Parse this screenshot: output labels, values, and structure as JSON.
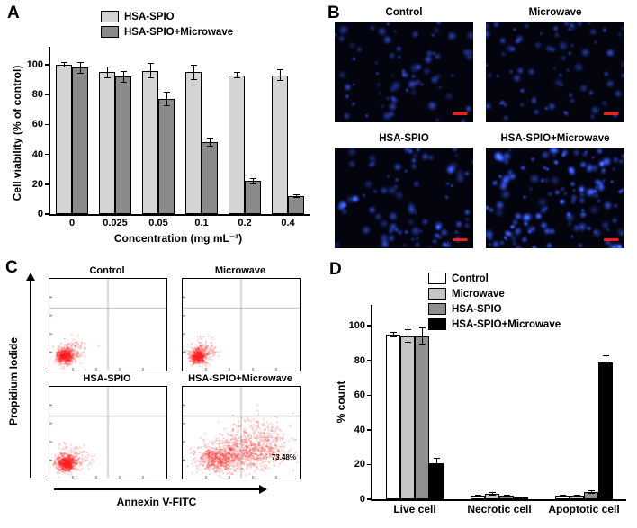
{
  "panels": {
    "a": {
      "label": "A"
    },
    "b": {
      "label": "B",
      "scale_bar_color": "#ff1a1a",
      "images": [
        {
          "title": "Control",
          "cell_count": 70,
          "brightness": 0.8
        },
        {
          "title": "Microwave",
          "cell_count": 75,
          "brightness": 0.8
        },
        {
          "title": "HSA-SPIO",
          "cell_count": 85,
          "brightness": 0.85
        },
        {
          "title": "HSA-SPIO+Microwave",
          "cell_count": 150,
          "brightness": 1.0
        }
      ]
    },
    "c": {
      "label": "C"
    },
    "d": {
      "label": "D"
    }
  },
  "chart_data": [
    {
      "panel": "A",
      "type": "bar",
      "categories": [
        "0",
        "0.025",
        "0.05",
        "0.1",
        "0.2",
        "0.4"
      ],
      "series": [
        {
          "name": "HSA-SPIO",
          "color": "#d4d4d4",
          "values": [
            100,
            95,
            96,
            95,
            93,
            93
          ],
          "errors": [
            2,
            4,
            5,
            5,
            2,
            4
          ]
        },
        {
          "name": "HSA-SPIO+Microwave",
          "color": "#8a8a8a",
          "values": [
            98,
            92,
            77,
            48,
            22,
            12
          ],
          "errors": [
            4,
            4,
            5,
            3,
            2,
            1
          ]
        }
      ],
      "xlabel": "Concentration (mg mL⁻¹)",
      "ylabel": "Cell viability (% of control)",
      "ylim": [
        0,
        112
      ],
      "yticks": [
        0,
        20,
        40,
        60,
        80,
        100
      ],
      "legend_position": "top"
    },
    {
      "panel": "C",
      "type": "scatter",
      "xlabel": "Annexin V-FITC",
      "ylabel": "Propidium Iodide",
      "point_color": "#ff1e1e",
      "quadrant_x": 0.5,
      "quadrant_y": 0.32,
      "subplots": [
        {
          "title": "Control",
          "annotation": "",
          "clusters": [
            {
              "cx": 0.13,
              "cy": 0.84,
              "sx": 0.035,
              "sy": 0.04,
              "n": 600
            },
            {
              "cx": 0.18,
              "cy": 0.78,
              "sx": 0.07,
              "sy": 0.06,
              "n": 130
            }
          ]
        },
        {
          "title": "Microwave",
          "annotation": "",
          "clusters": [
            {
              "cx": 0.13,
              "cy": 0.84,
              "sx": 0.035,
              "sy": 0.04,
              "n": 550
            },
            {
              "cx": 0.18,
              "cy": 0.78,
              "sx": 0.065,
              "sy": 0.055,
              "n": 110
            }
          ]
        },
        {
          "title": "HSA-SPIO",
          "annotation": "",
          "clusters": [
            {
              "cx": 0.14,
              "cy": 0.83,
              "sx": 0.04,
              "sy": 0.045,
              "n": 650
            },
            {
              "cx": 0.2,
              "cy": 0.77,
              "sx": 0.08,
              "sy": 0.065,
              "n": 150
            }
          ]
        },
        {
          "title": "HSA-SPIO+Microwave",
          "annotation": "73.48%",
          "clusters": [
            {
              "cx": 0.3,
              "cy": 0.78,
              "sx": 0.09,
              "sy": 0.07,
              "n": 550
            },
            {
              "cx": 0.55,
              "cy": 0.69,
              "sx": 0.16,
              "sy": 0.1,
              "n": 750
            },
            {
              "cx": 0.65,
              "cy": 0.48,
              "sx": 0.13,
              "sy": 0.1,
              "n": 130
            }
          ]
        }
      ]
    },
    {
      "panel": "D",
      "type": "bar",
      "categories": [
        "Live cell",
        "Necrotic cell",
        "Apoptotic cell"
      ],
      "series": [
        {
          "name": "Control",
          "color": "#ffffff",
          "values": [
            95,
            2,
            2
          ],
          "errors": [
            1.5,
            0.5,
            0.5
          ]
        },
        {
          "name": "Microwave",
          "color": "#c6c6c6",
          "values": [
            94,
            3,
            2
          ],
          "errors": [
            4,
            1,
            0.5
          ]
        },
        {
          "name": "HSA-SPIO",
          "color": "#8f8f8f",
          "values": [
            94,
            2,
            4
          ],
          "errors": [
            5,
            0.5,
            1
          ]
        },
        {
          "name": "HSA-SPIO+Microwave",
          "color": "#000000",
          "values": [
            21,
            1,
            79
          ],
          "errors": [
            3,
            0.5,
            4
          ]
        }
      ],
      "xlabel": "",
      "ylabel": "% count",
      "ylim": [
        0,
        112
      ],
      "yticks": [
        0,
        20,
        40,
        60,
        80,
        100
      ],
      "legend_position": "top-right"
    }
  ]
}
